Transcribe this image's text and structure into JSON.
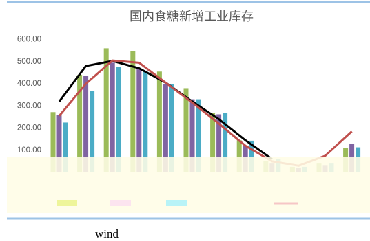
{
  "chart_data": {
    "type": "bar",
    "title": "国内食糖新增工业库存",
    "categories": [
      null,
      null,
      null,
      null,
      null,
      null,
      null,
      null,
      null,
      null,
      null,
      null
    ],
    "ylim": [
      0,
      600
    ],
    "yticks": [
      {
        "value": 100,
        "label": "100.00"
      },
      {
        "value": 200,
        "label": "200.00"
      },
      {
        "value": 300,
        "label": "300.00"
      },
      {
        "value": 400,
        "label": "400.00"
      },
      {
        "value": 500,
        "label": "500.00"
      },
      {
        "value": 600,
        "label": "600.00"
      }
    ],
    "series": [
      {
        "type": "bar",
        "color": "#9bbb59",
        "values": [
          272,
          440,
          560,
          548,
          455,
          380,
          268,
          145,
          50,
          25,
          40,
          110
        ]
      },
      {
        "type": "bar",
        "color": "#8064a2",
        "values": [
          258,
          437,
          495,
          465,
          398,
          330,
          262,
          120,
          40,
          20,
          30,
          128
        ]
      },
      {
        "type": "bar",
        "color": "#4bacc6",
        "values": [
          225,
          368,
          477,
          455,
          400,
          330,
          268,
          143,
          60,
          25,
          40,
          113
        ]
      },
      {
        "type": "line",
        "color": "#000000",
        "values": [
          320,
          480,
          503,
          470,
          405,
          320,
          240,
          145,
          60,
          null,
          null,
          null
        ]
      },
      {
        "type": "line",
        "color": "#c0504d",
        "values": [
          255,
          400,
          505,
          495,
          405,
          315,
          220,
          120,
          50,
          30,
          75,
          185
        ]
      }
    ],
    "note": "wind"
  }
}
